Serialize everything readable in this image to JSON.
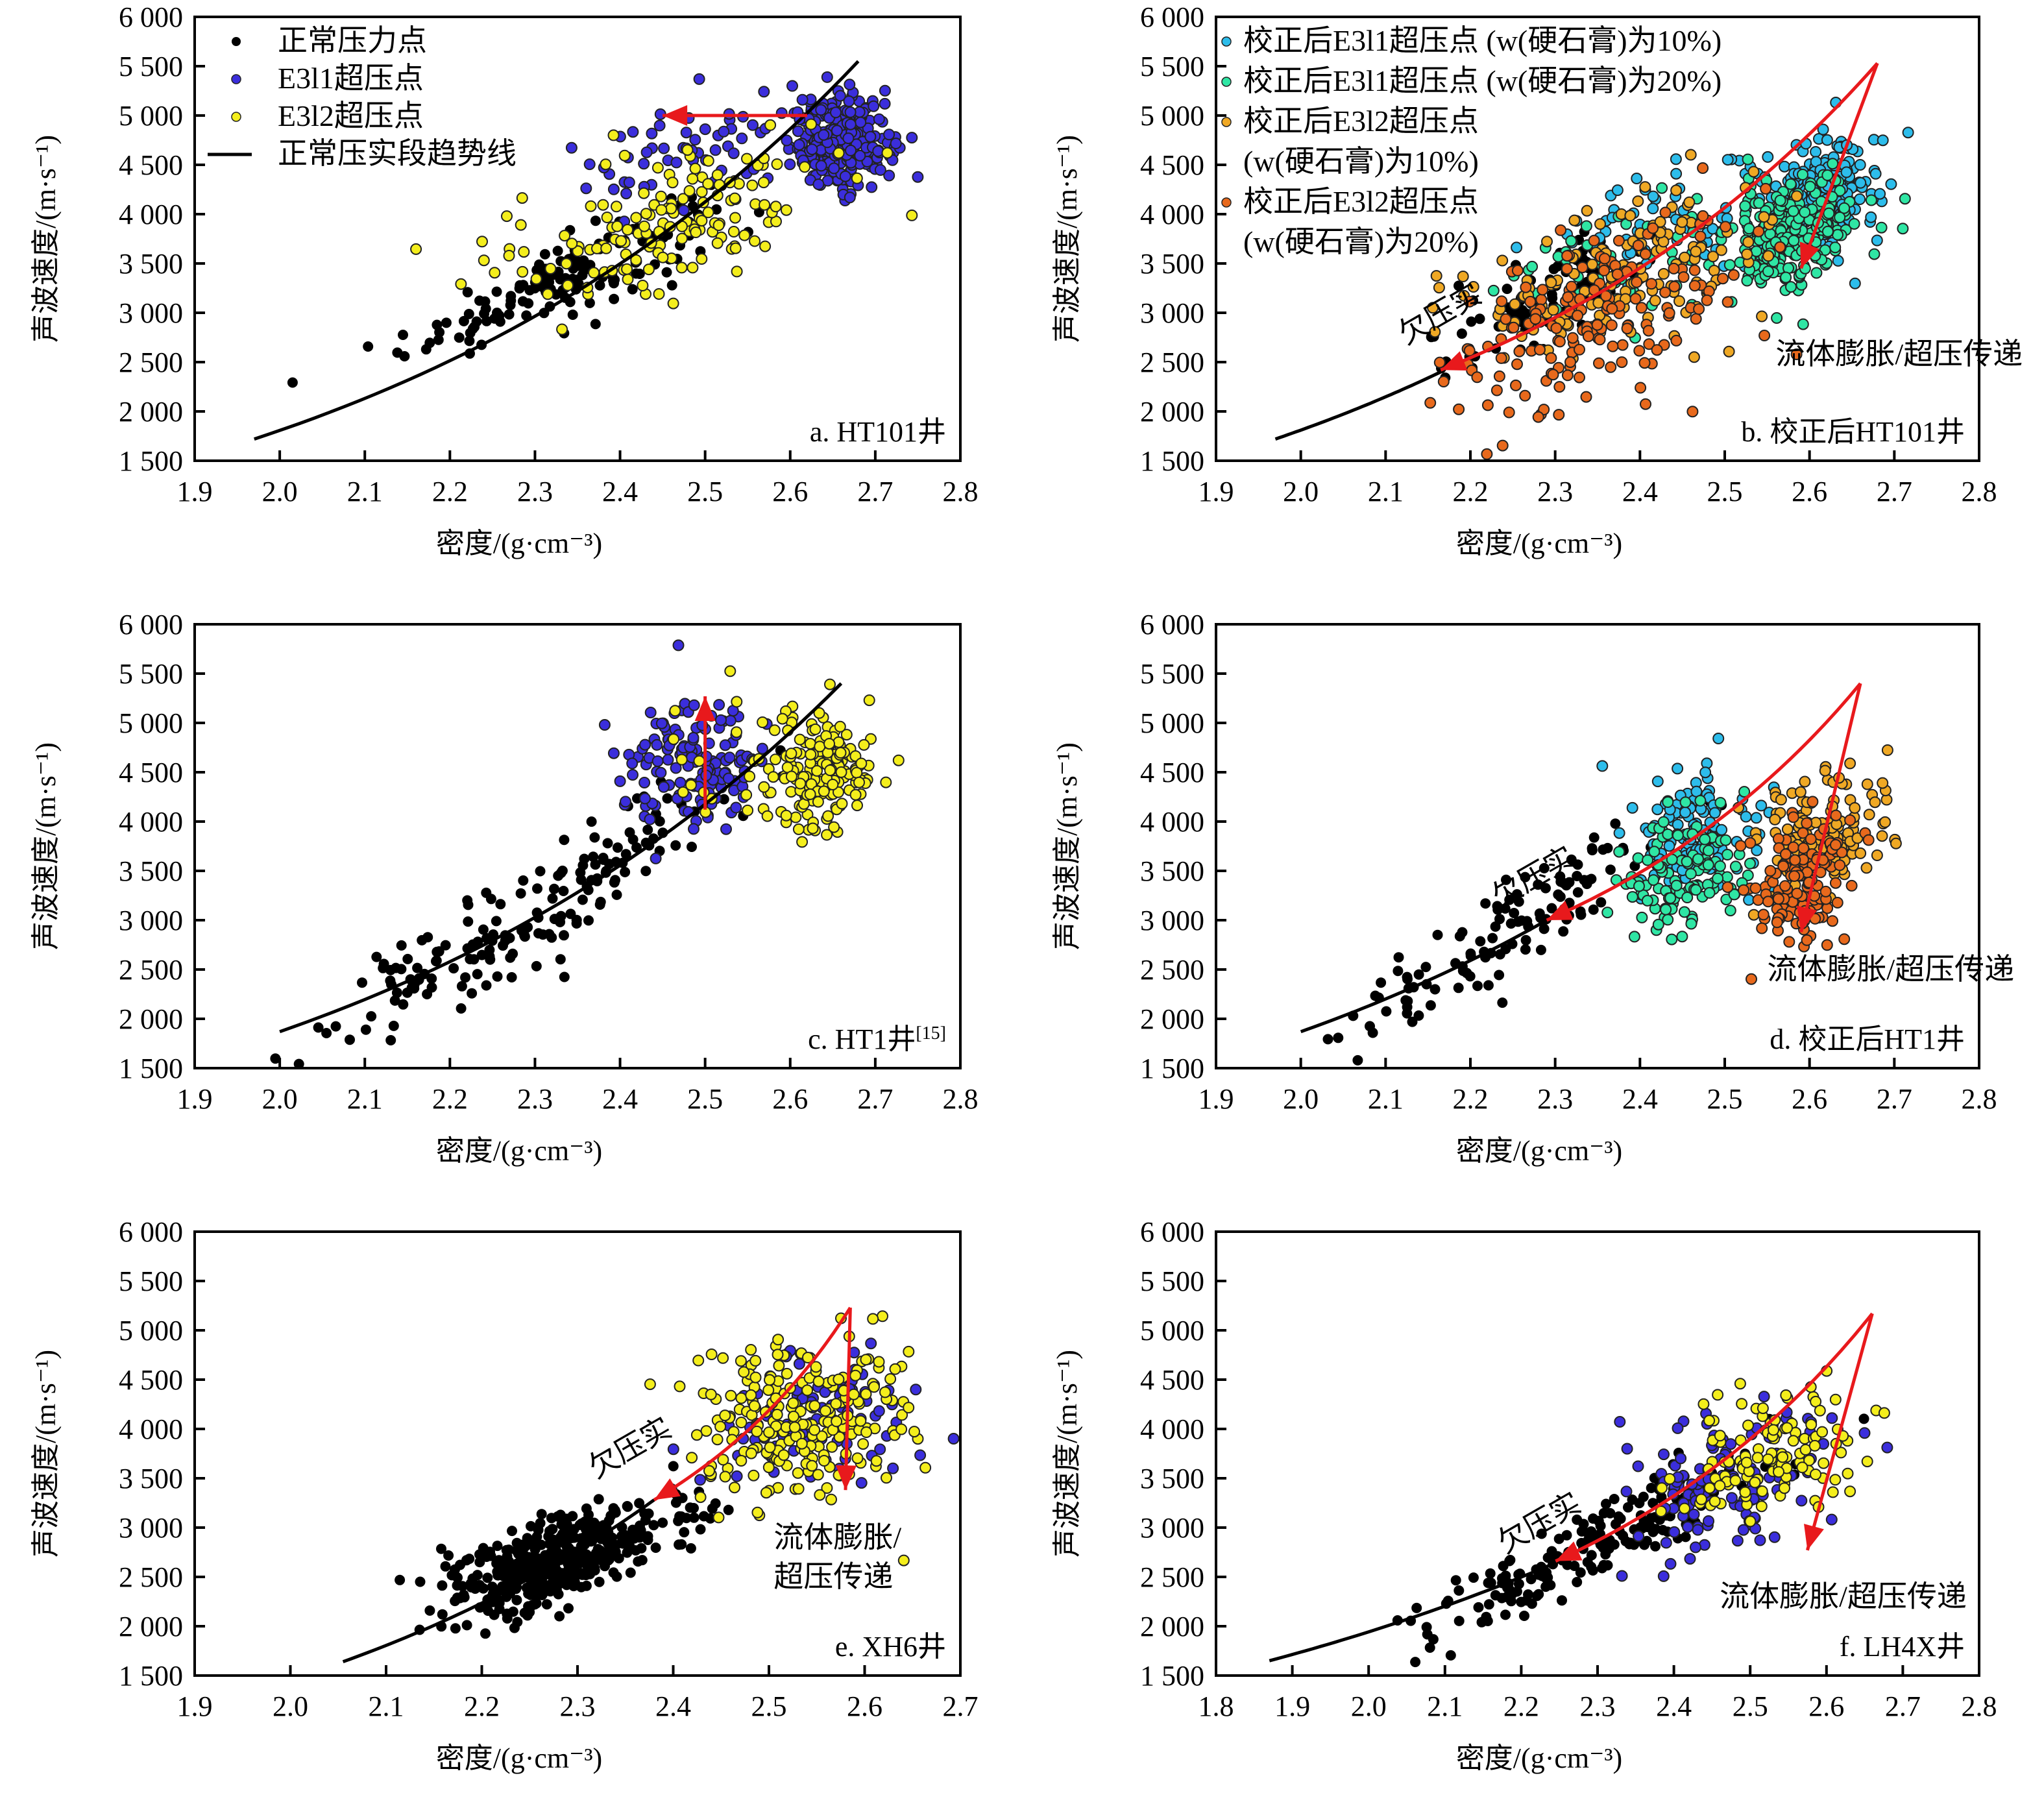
{
  "figure": {
    "ylabel": "声波速度/(m·s⁻¹)",
    "xlabel": "密度/(g·cm⁻³)"
  },
  "colors": {
    "normal": "#000000",
    "E3l1": "#3B2EDC",
    "E3l2": "#F4EE1C",
    "E3l1_10": "#2DBDEB",
    "E3l1_20": "#2FE6A4",
    "E3l2_10": "#EFA824",
    "E3l2_20": "#E8691C",
    "arrow": "#E8191C",
    "trend": "#000000"
  },
  "chart_data": [
    {
      "id": "a",
      "type": "scatter",
      "title": "a. HT101井",
      "xlabel": "密度/(g·cm⁻³)",
      "ylabel": "声波速度/(m·s⁻¹)",
      "xlim": [
        1.9,
        2.8
      ],
      "ylim": [
        1500,
        6000
      ],
      "xticks": [
        "1.9",
        "2.0",
        "2.1",
        "2.2",
        "2.3",
        "2.4",
        "2.5",
        "2.6",
        "2.7",
        "2.8"
      ],
      "yticks": [
        "1 500",
        "2 000",
        "2 500",
        "3 000",
        "3 500",
        "4 000",
        "4 500",
        "5 000",
        "5 500",
        "6 000"
      ],
      "legend": [
        {
          "label": "正常压力点",
          "series": "normal",
          "marker": "dot"
        },
        {
          "label": "E3l1超压点",
          "series": "E3l1",
          "marker": "dot"
        },
        {
          "label": "E3l2超压点",
          "series": "E3l2",
          "marker": "dot"
        },
        {
          "label": "正常压实段趋势线",
          "series": "trend",
          "marker": "line"
        }
      ],
      "legend_position": "top-left",
      "trend": {
        "x_from": 1.97,
        "x_to": 2.68,
        "v_from": 1720,
        "v_to": 5550
      },
      "series": [
        {
          "name": "normal",
          "clusters": [
            {
              "x": 2.33,
              "y": 3350,
              "sx": 0.09,
              "sy": 380,
              "n": 150,
              "corr": 0.85
            }
          ]
        },
        {
          "name": "E3l1",
          "clusters": [
            {
              "x": 2.66,
              "y": 4720,
              "sx": 0.03,
              "sy": 230,
              "n": 260,
              "corr": 0.1
            },
            {
              "x": 2.48,
              "y": 4650,
              "sx": 0.07,
              "sy": 300,
              "n": 60,
              "corr": 0.2
            }
          ]
        },
        {
          "name": "E3l2",
          "clusters": [
            {
              "x": 2.45,
              "y": 3950,
              "sx": 0.1,
              "sy": 450,
              "n": 150,
              "corr": 0.6
            }
          ]
        }
      ],
      "arrows": [
        {
          "from": [
            2.62,
            5000
          ],
          "to": [
            2.45,
            5000
          ],
          "curve": 0
        }
      ],
      "annotations": []
    },
    {
      "id": "b",
      "type": "scatter",
      "title": "b. 校正后HT101井",
      "xlabel": "密度/(g·cm⁻³)",
      "ylabel": "声波速度/(m·s⁻¹)",
      "xlim": [
        1.9,
        2.8
      ],
      "ylim": [
        1500,
        6000
      ],
      "xticks": [
        "1.9",
        "2.0",
        "2.1",
        "2.2",
        "2.3",
        "2.4",
        "2.5",
        "2.6",
        "2.7",
        "2.8"
      ],
      "yticks": [
        "1 500",
        "2 000",
        "2 500",
        "3 000",
        "3 500",
        "4 000",
        "4 500",
        "5 000",
        "5 500",
        "6 000"
      ],
      "legend": [
        {
          "label": "校正后E3l1超压点 (w(硬石膏)为10%)",
          "series": "E3l1_10",
          "marker": "dot"
        },
        {
          "label": "校正后E3l1超压点 (w(硬石膏)为20%)",
          "series": "E3l1_20",
          "marker": "dot"
        },
        {
          "label": "校正后E3l2超压点",
          "label2": "(w(硬石膏)为10%)",
          "series": "E3l2_10",
          "marker": "dot"
        },
        {
          "label": "校正后E3l2超压点",
          "label2": "(w(硬石膏)为20%)",
          "series": "E3l2_20",
          "marker": "dot"
        }
      ],
      "legend_position": "top-left",
      "trend": {
        "x_from": 1.97,
        "x_to": 2.165,
        "v_from": 1720,
        "v_to": 2400
      },
      "series": [
        {
          "name": "normal",
          "clusters": [
            {
              "x": 2.3,
              "y": 3200,
              "sx": 0.06,
              "sy": 300,
              "n": 110,
              "corr": 0.7
            }
          ]
        },
        {
          "name": "E3l1_10",
          "clusters": [
            {
              "x": 2.61,
              "y": 4200,
              "sx": 0.035,
              "sy": 280,
              "n": 230,
              "corr": 0.2
            },
            {
              "x": 2.43,
              "y": 3900,
              "sx": 0.07,
              "sy": 330,
              "n": 60,
              "corr": 0.3
            }
          ]
        },
        {
          "name": "E3l1_20",
          "clusters": [
            {
              "x": 2.58,
              "y": 3800,
              "sx": 0.035,
              "sy": 260,
              "n": 260,
              "corr": 0.2
            },
            {
              "x": 2.4,
              "y": 3550,
              "sx": 0.08,
              "sy": 350,
              "n": 60,
              "corr": 0.3
            }
          ]
        },
        {
          "name": "E3l2_10",
          "clusters": [
            {
              "x": 2.38,
              "y": 3400,
              "sx": 0.09,
              "sy": 430,
              "n": 150,
              "corr": 0.5
            }
          ]
        },
        {
          "name": "E3l2_20",
          "clusters": [
            {
              "x": 2.36,
              "y": 3000,
              "sx": 0.09,
              "sy": 500,
              "n": 170,
              "corr": 0.5
            }
          ]
        }
      ],
      "arrows": [
        {
          "from": [
            2.68,
            5530
          ],
          "to": [
            2.165,
            2420
          ],
          "curve": 1
        },
        {
          "from": [
            2.68,
            5530
          ],
          "to": [
            2.59,
            3450
          ],
          "curve": 0
        }
      ],
      "annotations": [
        {
          "text": "欠压实",
          "x": 2.17,
          "y": 2900,
          "rotate": -30
        },
        {
          "text": "流体膨胀/超压传递",
          "x": 2.56,
          "y": 2480,
          "anchor": "start"
        }
      ]
    },
    {
      "id": "c",
      "type": "scatter",
      "title": "c. HT1井",
      "title_sup": "[15]",
      "xlabel": "密度/(g·cm⁻³)",
      "ylabel": "声波速度/(m·s⁻¹)",
      "xlim": [
        1.9,
        2.8
      ],
      "ylim": [
        1500,
        6000
      ],
      "xticks": [
        "1.9",
        "2.0",
        "2.1",
        "2.2",
        "2.3",
        "2.4",
        "2.5",
        "2.6",
        "2.7",
        "2.8"
      ],
      "yticks": [
        "1 500",
        "2 000",
        "2 500",
        "3 000",
        "3 500",
        "4 000",
        "4 500",
        "5 000",
        "5 500",
        "6 000"
      ],
      "trend": {
        "x_from": 2.0,
        "x_to": 2.66,
        "v_from": 1870,
        "v_to": 5400
      },
      "series": [
        {
          "name": "normal",
          "clusters": [
            {
              "x": 2.3,
              "y": 3100,
              "sx": 0.13,
              "sy": 720,
              "n": 170,
              "corr": 0.93
            }
          ]
        },
        {
          "name": "E3l1",
          "clusters": [
            {
              "x": 2.49,
              "y": 4600,
              "sx": 0.04,
              "sy": 350,
              "n": 140,
              "corr": 0.1
            }
          ]
        },
        {
          "name": "E3l2",
          "clusters": [
            {
              "x": 2.64,
              "y": 4500,
              "sx": 0.03,
              "sy": 280,
              "n": 160,
              "corr": 0.1
            },
            {
              "x": 2.54,
              "y": 4550,
              "sx": 0.05,
              "sy": 300,
              "n": 30,
              "corr": 0.1
            }
          ]
        }
      ],
      "arrows": [
        {
          "from": [
            2.5,
            4120
          ],
          "to": [
            2.5,
            5270
          ],
          "curve": 0
        }
      ],
      "annotations": []
    },
    {
      "id": "d",
      "type": "scatter",
      "title": "d. 校正后HT1井",
      "xlabel": "密度/(g·cm⁻³)",
      "ylabel": "声波速度/(m·s⁻¹)",
      "xlim": [
        1.9,
        2.8
      ],
      "ylim": [
        1500,
        6000
      ],
      "xticks": [
        "1.9",
        "2.0",
        "2.1",
        "2.2",
        "2.3",
        "2.4",
        "2.5",
        "2.6",
        "2.7",
        "2.8"
      ],
      "yticks": [
        "1 500",
        "2 000",
        "2 500",
        "3 000",
        "3 500",
        "4 000",
        "4 500",
        "5 000",
        "5 500",
        "6 000"
      ],
      "trend": {
        "x_from": 2.0,
        "x_to": 2.29,
        "v_from": 1870,
        "v_to": 3000
      },
      "series": [
        {
          "name": "normal",
          "clusters": [
            {
              "x": 2.25,
              "y": 2900,
              "sx": 0.1,
              "sy": 600,
              "n": 120,
              "corr": 0.9
            }
          ]
        },
        {
          "name": "E3l1_10",
          "clusters": [
            {
              "x": 2.47,
              "y": 3950,
              "sx": 0.04,
              "sy": 330,
              "n": 110,
              "corr": 0.1
            }
          ]
        },
        {
          "name": "E3l1_20",
          "clusters": [
            {
              "x": 2.45,
              "y": 3500,
              "sx": 0.04,
              "sy": 350,
              "n": 130,
              "corr": 0.1
            }
          ]
        },
        {
          "name": "E3l2_10",
          "clusters": [
            {
              "x": 2.61,
              "y": 3900,
              "sx": 0.04,
              "sy": 330,
              "n": 130,
              "corr": 0.1
            }
          ]
        },
        {
          "name": "E3l2_20",
          "clusters": [
            {
              "x": 2.59,
              "y": 3400,
              "sx": 0.03,
              "sy": 300,
              "n": 140,
              "corr": 0.1
            }
          ]
        }
      ],
      "arrows": [
        {
          "from": [
            2.66,
            5400
          ],
          "to": [
            2.29,
            3000
          ],
          "curve": 1
        },
        {
          "from": [
            2.66,
            5400
          ],
          "to": [
            2.59,
            2880
          ],
          "curve": 0
        }
      ],
      "annotations": [
        {
          "text": "欠压实",
          "x": 2.28,
          "y": 3350,
          "rotate": -30
        },
        {
          "text": "流体膨胀/超压传递",
          "x": 2.55,
          "y": 2400,
          "anchor": "start"
        }
      ]
    },
    {
      "id": "e",
      "type": "scatter",
      "title": "e. XH6井",
      "xlabel": "密度/(g·cm⁻³)",
      "ylabel": "声波速度/(m·s⁻¹)",
      "xlim": [
        1.9,
        2.7
      ],
      "ylim": [
        1500,
        6000
      ],
      "xticks": [
        "1.9",
        "2.0",
        "2.1",
        "2.2",
        "2.3",
        "2.4",
        "2.5",
        "2.6",
        "2.7"
      ],
      "yticks": [
        "1 500",
        "2 000",
        "2 500",
        "3 000",
        "3 500",
        "4 000",
        "4 500",
        "5 000",
        "5 500",
        "6 000"
      ],
      "trend": {
        "x_from": 2.055,
        "x_to": 2.38,
        "v_from": 1640,
        "v_to": 3280
      },
      "series": [
        {
          "name": "normal",
          "clusters": [
            {
              "x": 2.27,
              "y": 2650,
              "sx": 0.05,
              "sy": 260,
              "n": 420,
              "corr": 0.6
            },
            {
              "x": 2.42,
              "y": 3200,
              "sx": 0.03,
              "sy": 200,
              "n": 20,
              "corr": 0.3
            }
          ]
        },
        {
          "name": "E3l1",
          "clusters": [
            {
              "x": 2.54,
              "y": 4100,
              "sx": 0.05,
              "sy": 350,
              "n": 90,
              "corr": 0.1
            }
          ]
        },
        {
          "name": "E3l2",
          "clusters": [
            {
              "x": 2.53,
              "y": 4150,
              "sx": 0.06,
              "sy": 400,
              "n": 230,
              "corr": 0.2
            }
          ]
        }
      ],
      "arrows": [
        {
          "from": [
            2.585,
            5230
          ],
          "to": [
            2.38,
            3280
          ],
          "curve": 1
        },
        {
          "from": [
            2.585,
            5230
          ],
          "to": [
            2.58,
            3380
          ],
          "curve": 0
        }
      ],
      "annotations": [
        {
          "text": "欠压实",
          "x": 2.36,
          "y": 3720,
          "rotate": -30
        },
        {
          "text": "流体膨胀/",
          "x": 2.505,
          "y": 2800,
          "anchor": "start"
        },
        {
          "text": "超压传递",
          "x": 2.505,
          "y": 2400,
          "anchor": "start"
        }
      ]
    },
    {
      "id": "f",
      "type": "scatter",
      "title": "f. LH4X井",
      "xlabel": "密度/(g·cm⁻³)",
      "ylabel": "声波速度/(m·s⁻¹)",
      "xlim": [
        1.8,
        2.8
      ],
      "ylim": [
        1500,
        6000
      ],
      "xticks": [
        "1.8",
        "1.9",
        "2.0",
        "2.1",
        "2.2",
        "2.3",
        "2.4",
        "2.5",
        "2.6",
        "2.7",
        "2.8"
      ],
      "yticks": [
        "1 500",
        "2 000",
        "2 500",
        "3 000",
        "3 500",
        "4 000",
        "4 500",
        "5 000",
        "5 500",
        "6 000"
      ],
      "trend": {
        "x_from": 1.87,
        "x_to": 2.25,
        "v_from": 1650,
        "v_to": 2660
      },
      "series": [
        {
          "name": "normal",
          "clusters": [
            {
              "x": 2.3,
              "y": 2850,
              "sx": 0.11,
              "sy": 480,
              "n": 200,
              "corr": 0.9
            }
          ]
        },
        {
          "name": "E3l1",
          "clusters": [
            {
              "x": 2.47,
              "y": 3450,
              "sx": 0.07,
              "sy": 380,
              "n": 120,
              "corr": 0.2
            }
          ]
        },
        {
          "name": "E3l2",
          "clusters": [
            {
              "x": 2.53,
              "y": 3700,
              "sx": 0.06,
              "sy": 330,
              "n": 120,
              "corr": 0.2
            }
          ]
        }
      ],
      "arrows": [
        {
          "from": [
            2.66,
            5170
          ],
          "to": [
            2.245,
            2660
          ],
          "curve": 1
        },
        {
          "from": [
            2.66,
            5170
          ],
          "to": [
            2.575,
            2770
          ],
          "curve": 0
        }
      ],
      "annotations": [
        {
          "text": "欠压实",
          "x": 2.23,
          "y": 2960,
          "rotate": -30
        },
        {
          "text": "流体膨胀/超压传递",
          "x": 2.46,
          "y": 2200,
          "anchor": "start"
        }
      ]
    }
  ]
}
